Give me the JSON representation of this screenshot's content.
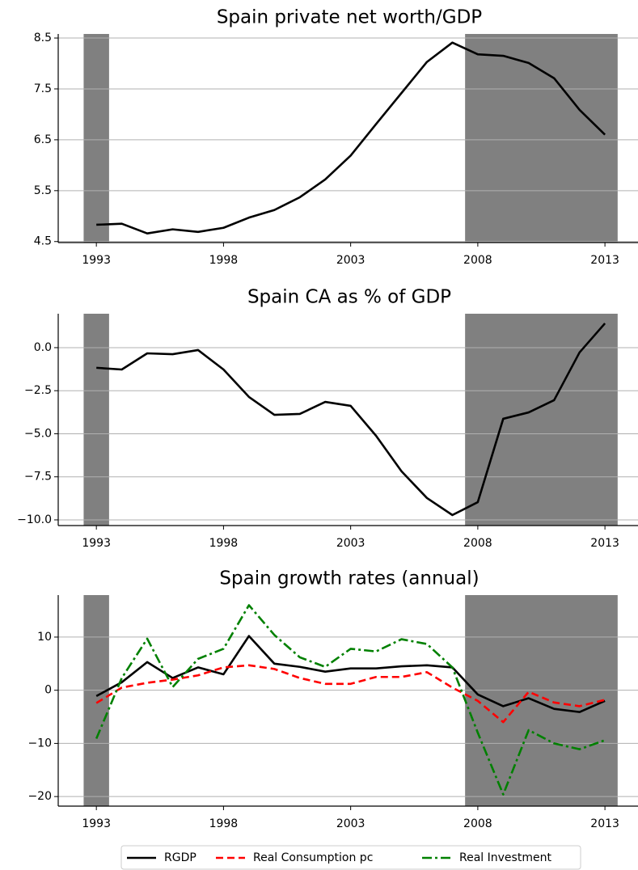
{
  "chart_data": [
    {
      "type": "line",
      "title": "Spain private net worth/GDP",
      "x": [
        1993,
        1994,
        1995,
        1996,
        1997,
        1998,
        1999,
        2000,
        2001,
        2002,
        2003,
        2004,
        2005,
        2006,
        2007,
        2008,
        2009,
        2010,
        2011,
        2012,
        2013
      ],
      "values": [
        4.83,
        4.85,
        4.66,
        4.74,
        4.69,
        4.77,
        4.97,
        5.12,
        5.37,
        5.72,
        6.19,
        6.81,
        7.42,
        8.03,
        8.41,
        8.18,
        8.15,
        8.01,
        7.71,
        7.09,
        6.6
      ],
      "color": "#000000",
      "xlim": [
        1991.5,
        2014.3
      ],
      "xticks": [
        1993,
        1998,
        2003,
        2008,
        2013
      ],
      "ylim": [
        4.48,
        8.58
      ],
      "yticks": [
        4.5,
        5.5,
        6.5,
        7.5,
        8.5
      ],
      "grid": true,
      "shaded_periods": [
        [
          1992.5,
          1993.5
        ],
        [
          2007.5,
          2013.5
        ]
      ],
      "shade_color": "#808080"
    },
    {
      "type": "line",
      "title": "Spain CA as % of GDP",
      "x": [
        1993,
        1994,
        1995,
        1996,
        1997,
        1998,
        1999,
        2000,
        2001,
        2002,
        2003,
        2004,
        2005,
        2006,
        2007,
        2008,
        2009,
        2010,
        2011,
        2012,
        2013
      ],
      "values": [
        -1.17,
        -1.27,
        -0.33,
        -0.38,
        -0.14,
        -1.27,
        -2.86,
        -3.9,
        -3.85,
        -3.15,
        -3.38,
        -5.12,
        -7.18,
        -8.73,
        -9.72,
        -8.97,
        -4.13,
        -3.76,
        -3.05,
        -0.28,
        1.41
      ],
      "color": "#000000",
      "xlim": [
        1991.5,
        2014.3
      ],
      "xticks": [
        1993,
        1998,
        2003,
        2008,
        2013
      ],
      "ylim": [
        -10.33,
        1.97
      ],
      "yticks": [
        {
          "value": -10.0,
          "label": "−10.0"
        },
        {
          "value": -7.5,
          "label": "−7.5"
        },
        {
          "value": -5.0,
          "label": "−5.0"
        },
        {
          "value": -2.5,
          "label": "−2.5"
        },
        {
          "value": 0.0,
          "label": "0.0"
        }
      ],
      "grid": true,
      "shaded_periods": [
        [
          1992.5,
          1993.5
        ],
        [
          2007.5,
          2013.5
        ]
      ],
      "shade_color": "#808080"
    },
    {
      "type": "line",
      "title": "Spain growth rates (annual)",
      "x": [
        1993,
        1994,
        1995,
        1996,
        1997,
        1998,
        1999,
        2000,
        2001,
        2002,
        2003,
        2004,
        2005,
        2006,
        2007,
        2008,
        2009,
        2010,
        2011,
        2012,
        2013
      ],
      "series": [
        {
          "name": "RGDP",
          "color": "#000000",
          "style": "solid",
          "values": [
            -1.1,
            1.5,
            5.3,
            2.3,
            4.3,
            3.0,
            10.2,
            5.0,
            4.4,
            3.5,
            4.1,
            4.1,
            4.5,
            4.7,
            4.3,
            -0.8,
            -3.0,
            -1.5,
            -3.5,
            -4.1,
            -2.0
          ]
        },
        {
          "name": "Real Consumption pc",
          "color": "#ff0000",
          "style": "dashed",
          "values": [
            -2.4,
            0.5,
            1.4,
            2.0,
            2.8,
            4.3,
            4.7,
            4.0,
            2.3,
            1.2,
            1.2,
            2.5,
            2.5,
            3.4,
            0.5,
            -2.0,
            -6.0,
            -0.3,
            -2.3,
            -3.0,
            -1.8
          ]
        },
        {
          "name": "Real Investment",
          "color": "#008000",
          "style": "dashdot",
          "values": [
            -9.1,
            2.3,
            9.7,
            0.6,
            5.9,
            7.8,
            16.0,
            10.4,
            6.2,
            4.4,
            7.8,
            7.3,
            9.6,
            8.7,
            4.3,
            -8.0,
            -19.6,
            -7.5,
            -10.0,
            -11.1,
            -9.4
          ]
        }
      ],
      "xlim": [
        1991.5,
        2014.3
      ],
      "xticks": [
        1993,
        1998,
        2003,
        2008,
        2013
      ],
      "ylim": [
        -21.8,
        17.9
      ],
      "yticks": [
        {
          "value": -20,
          "label": "−20"
        },
        {
          "value": -10,
          "label": "−10"
        },
        0,
        10
      ],
      "grid": true,
      "legend": "lower center",
      "shaded_periods": [
        [
          1992.5,
          1993.5
        ],
        [
          2007.5,
          2013.5
        ]
      ],
      "shade_color": "#808080"
    }
  ]
}
